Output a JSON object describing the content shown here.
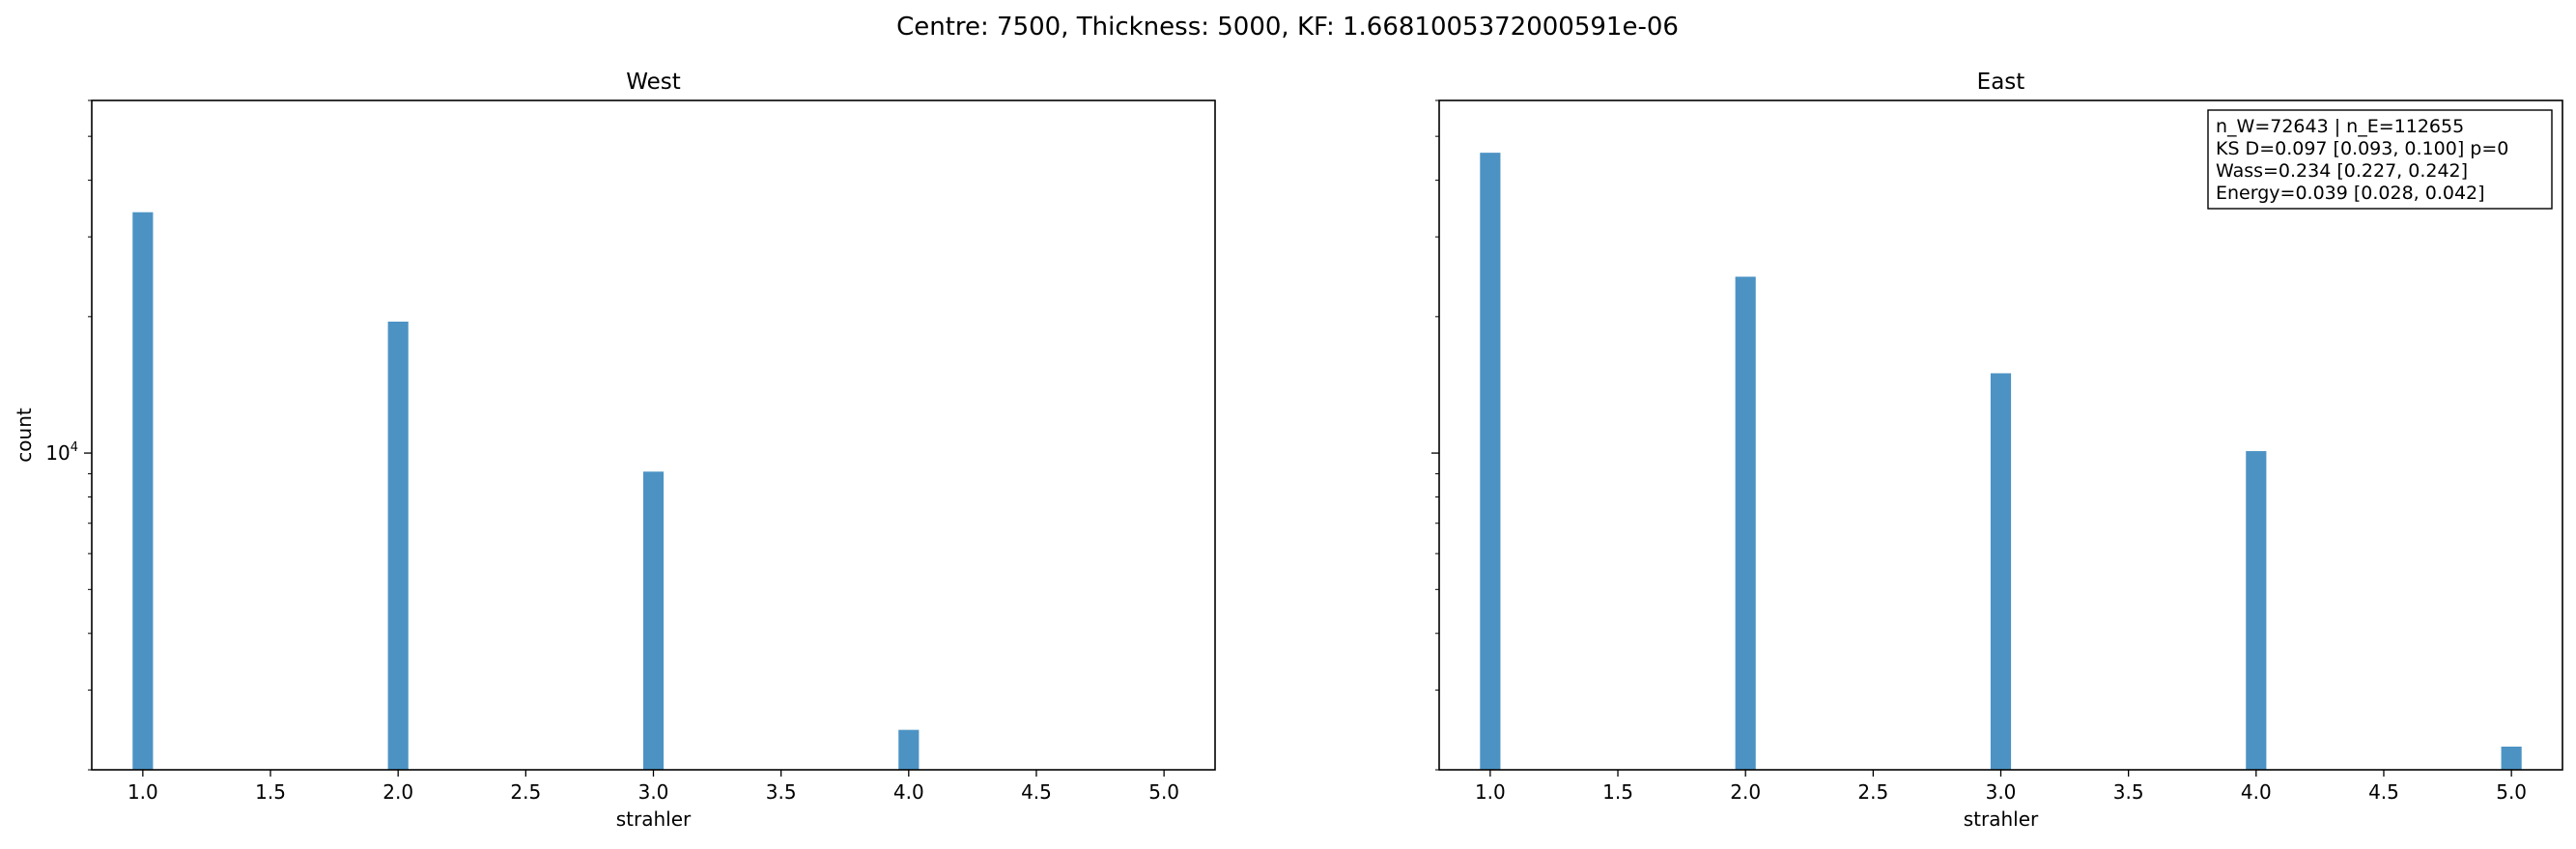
{
  "suptitle": "Centre: 7500, Thickness: 5000, KF: 1.6681005372000591e-06",
  "chart_data": [
    {
      "type": "bar",
      "title": "West",
      "xlabel": "strahler",
      "ylabel": "count",
      "yscale": "log",
      "xlim": [
        0.8,
        5.2
      ],
      "ylim": [
        2000,
        60000
      ],
      "x_ticks": [
        "1.0",
        "1.5",
        "2.0",
        "2.5",
        "3.0",
        "3.5",
        "4.0",
        "4.5",
        "5.0"
      ],
      "y_major_tick_label": "10^4",
      "bar_width": 0.08,
      "color": "#4c93c4",
      "x": [
        1.0,
        2.0,
        3.0,
        4.0
      ],
      "values": [
        34000,
        19500,
        9100,
        2450
      ]
    },
    {
      "type": "bar",
      "title": "East",
      "xlabel": "strahler",
      "ylabel": "",
      "yscale": "log",
      "xlim": [
        0.8,
        5.2
      ],
      "ylim": [
        2000,
        60000
      ],
      "x_ticks": [
        "1.0",
        "1.5",
        "2.0",
        "2.5",
        "3.0",
        "3.5",
        "4.0",
        "4.5",
        "5.0"
      ],
      "bar_width": 0.08,
      "color": "#4c93c4",
      "x": [
        1.0,
        2.0,
        3.0,
        4.0,
        5.0
      ],
      "values": [
        46000,
        24500,
        15000,
        10100,
        2250
      ],
      "annotation": [
        "n_W=72643 | n_E=112655",
        "KS D=0.097 [0.093, 0.100]  p=0",
        "Wass=0.234 [0.227, 0.242]",
        "Energy=0.039 [0.028, 0.042]"
      ]
    }
  ]
}
